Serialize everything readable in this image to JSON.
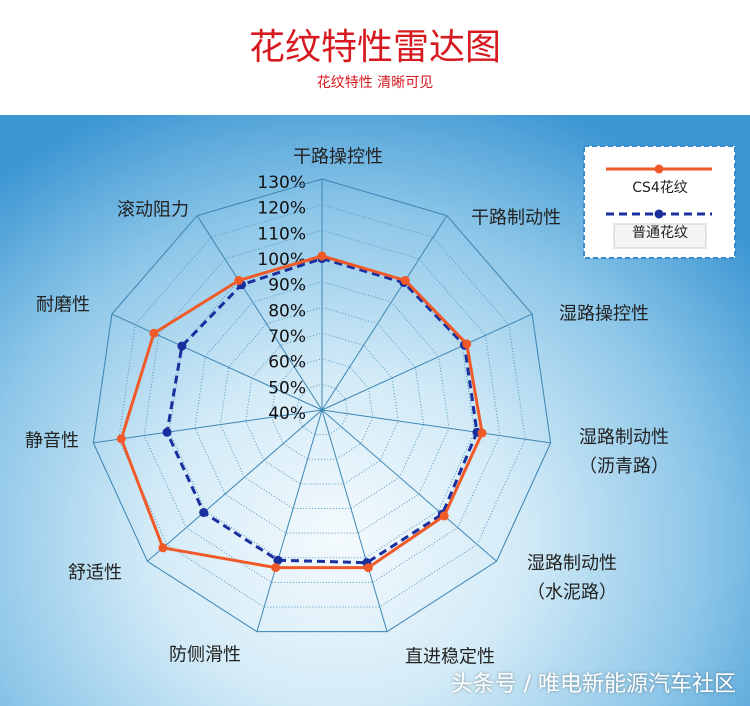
{
  "chart_data": {
    "type": "radar",
    "title": "花纹特性雷达图",
    "subtitle": "花纹特性 清晰可见",
    "categories": [
      "干路操控性",
      "干路制动性",
      "湿路操控性",
      "湿路制动性\n（沥青路）",
      "湿路制动性\n（水泥路）",
      "直进稳定性",
      "防侧滑性",
      "舒适性",
      "静音性",
      "耐磨性",
      "滚动阻力"
    ],
    "series": [
      {
        "name": "CS4花纹",
        "color": "#f05a28",
        "values": [
          100,
          100,
          102,
          103,
          103,
          104,
          104,
          122,
          119,
          112,
          100
        ]
      },
      {
        "name": "普通花纹",
        "color": "#1a2f9e",
        "values": [
          99,
          99,
          101,
          101,
          102,
          102,
          101,
          101,
          101,
          100,
          98
        ]
      }
    ],
    "rlim": [
      40,
      130
    ],
    "rticks": [
      {
        "value": 40,
        "label": "40%"
      },
      {
        "value": 50,
        "label": "50%"
      },
      {
        "value": 60,
        "label": "60%"
      },
      {
        "value": 70,
        "label": "70%"
      },
      {
        "value": 80,
        "label": "80%"
      },
      {
        "value": 90,
        "label": "90%"
      },
      {
        "value": 100,
        "label": "100%"
      },
      {
        "value": 110,
        "label": "110%"
      },
      {
        "value": 120,
        "label": "120%"
      },
      {
        "value": 130,
        "label": "130%"
      }
    ],
    "legend": "top-right"
  },
  "watermark": "头条号 / 唯电新能源汽车社区"
}
